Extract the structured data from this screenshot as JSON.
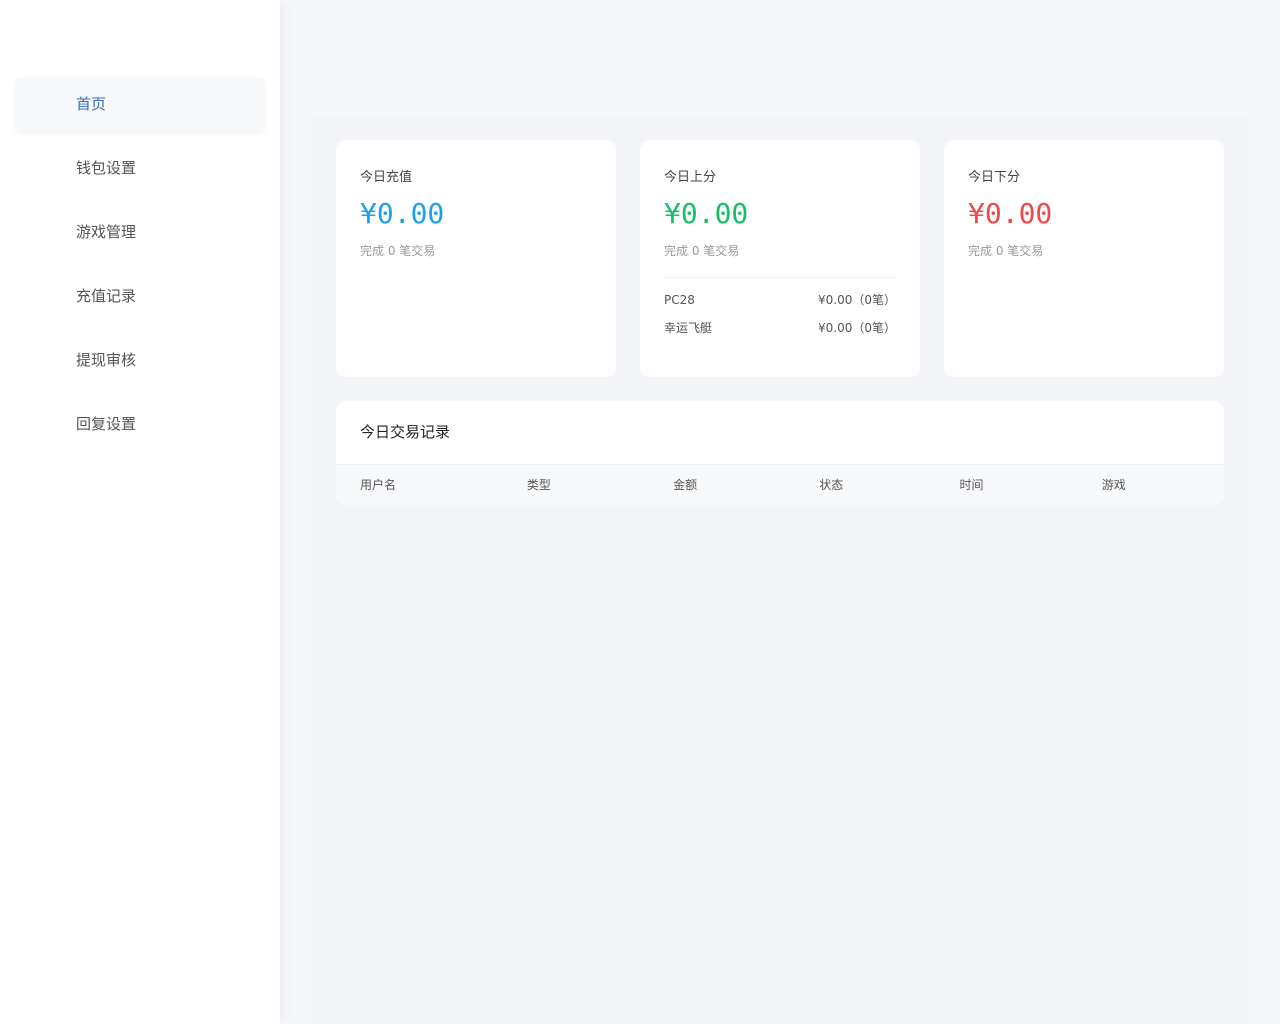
{
  "sidebar": {
    "items": [
      {
        "label": "首页",
        "active": true
      },
      {
        "label": "钱包设置"
      },
      {
        "label": "游戏管理"
      },
      {
        "label": "充值记录"
      },
      {
        "label": "提现审核"
      },
      {
        "label": "回复设置"
      }
    ]
  },
  "cards": [
    {
      "title": "今日充值",
      "amount": "¥0.00",
      "sub": "完成 0 笔交易",
      "color": "#1ea0e6"
    },
    {
      "title": "今日上分",
      "amount": "¥0.00",
      "sub": "完成 0 笔交易",
      "color": "#19be6b",
      "breakdown": [
        {
          "name": "PC28",
          "value": "¥0.00（0笔）"
        },
        {
          "name": "幸运飞艇",
          "value": "¥0.00（0笔）"
        }
      ]
    },
    {
      "title": "今日下分",
      "amount": "¥0.00",
      "sub": "完成 0 笔交易",
      "color": "#ed4a4a"
    }
  ],
  "table": {
    "title": "今日交易记录",
    "columns": [
      "用户名",
      "类型",
      "金额",
      "状态",
      "时间",
      "游戏"
    ]
  }
}
